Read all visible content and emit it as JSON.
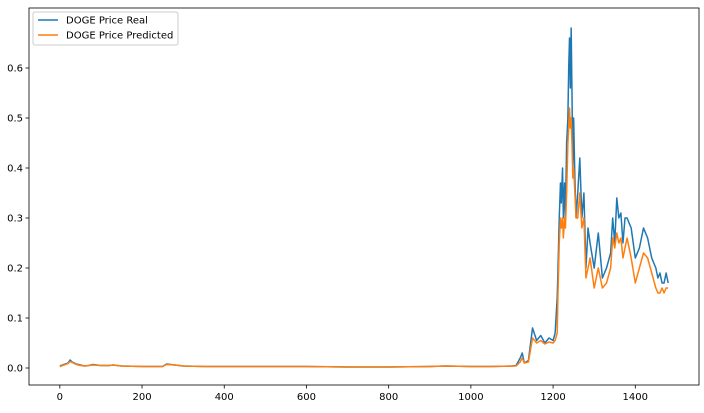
{
  "chart_data": {
    "type": "line",
    "title": "",
    "xlabel": "",
    "ylabel": "",
    "xlim": [
      -75,
      1555
    ],
    "ylim": [
      -0.034,
      0.72
    ],
    "xticks": [
      0,
      200,
      400,
      600,
      800,
      1000,
      1200,
      1400
    ],
    "xtick_labels": [
      "0",
      "200",
      "400",
      "600",
      "800",
      "1000",
      "1200",
      "1400"
    ],
    "yticks": [
      0.0,
      0.1,
      0.2,
      0.3,
      0.4,
      0.5,
      0.6
    ],
    "ytick_labels": [
      "0.0",
      "0.1",
      "0.2",
      "0.3",
      "0.4",
      "0.5",
      "0.6"
    ],
    "grid": false,
    "legend_position": "upper-left",
    "series": [
      {
        "name": "DOGE Price Real",
        "color": "#1f77b4",
        "x": [
          0,
          10,
          20,
          25,
          30,
          40,
          50,
          60,
          70,
          80,
          100,
          120,
          130,
          150,
          200,
          250,
          260,
          280,
          300,
          350,
          400,
          500,
          600,
          700,
          800,
          900,
          940,
          1000,
          1050,
          1100,
          1110,
          1120,
          1125,
          1130,
          1140,
          1150,
          1160,
          1170,
          1180,
          1190,
          1200,
          1205,
          1210,
          1212,
          1215,
          1218,
          1220,
          1223,
          1225,
          1228,
          1230,
          1233,
          1236,
          1238,
          1240,
          1242,
          1244,
          1246,
          1248,
          1250,
          1253,
          1256,
          1260,
          1265,
          1270,
          1275,
          1280,
          1285,
          1290,
          1300,
          1310,
          1320,
          1330,
          1340,
          1345,
          1350,
          1355,
          1360,
          1365,
          1370,
          1375,
          1380,
          1390,
          1400,
          1410,
          1420,
          1430,
          1440,
          1450,
          1455,
          1460,
          1465,
          1470,
          1475,
          1480
        ],
        "y": [
          0.004,
          0.007,
          0.01,
          0.016,
          0.012,
          0.008,
          0.006,
          0.004,
          0.005,
          0.007,
          0.005,
          0.005,
          0.006,
          0.004,
          0.003,
          0.003,
          0.008,
          0.006,
          0.004,
          0.003,
          0.003,
          0.003,
          0.003,
          0.002,
          0.002,
          0.003,
          0.004,
          0.003,
          0.003,
          0.004,
          0.005,
          0.02,
          0.03,
          0.01,
          0.015,
          0.08,
          0.055,
          0.065,
          0.05,
          0.06,
          0.055,
          0.07,
          0.14,
          0.2,
          0.3,
          0.37,
          0.33,
          0.4,
          0.3,
          0.37,
          0.3,
          0.45,
          0.5,
          0.6,
          0.66,
          0.56,
          0.68,
          0.55,
          0.4,
          0.5,
          0.38,
          0.3,
          0.35,
          0.42,
          0.3,
          0.35,
          0.2,
          0.28,
          0.25,
          0.2,
          0.27,
          0.18,
          0.2,
          0.23,
          0.3,
          0.25,
          0.34,
          0.3,
          0.31,
          0.25,
          0.3,
          0.3,
          0.28,
          0.22,
          0.24,
          0.28,
          0.26,
          0.22,
          0.2,
          0.18,
          0.19,
          0.17,
          0.17,
          0.19,
          0.17
        ]
      },
      {
        "name": "DOGE Price Predicted",
        "color": "#ff7f0e",
        "x": [
          0,
          10,
          20,
          25,
          30,
          40,
          50,
          60,
          70,
          80,
          100,
          120,
          130,
          150,
          200,
          250,
          260,
          280,
          300,
          350,
          400,
          500,
          600,
          700,
          800,
          900,
          940,
          1000,
          1050,
          1100,
          1110,
          1120,
          1125,
          1130,
          1140,
          1150,
          1160,
          1170,
          1180,
          1190,
          1200,
          1205,
          1210,
          1212,
          1215,
          1218,
          1220,
          1223,
          1225,
          1228,
          1230,
          1233,
          1236,
          1238,
          1240,
          1242,
          1244,
          1246,
          1248,
          1250,
          1253,
          1256,
          1260,
          1265,
          1270,
          1275,
          1280,
          1285,
          1290,
          1300,
          1310,
          1320,
          1330,
          1340,
          1345,
          1350,
          1355,
          1360,
          1365,
          1370,
          1375,
          1380,
          1390,
          1400,
          1410,
          1420,
          1430,
          1440,
          1450,
          1455,
          1460,
          1465,
          1470,
          1475,
          1480
        ],
        "y": [
          0.003,
          0.006,
          0.009,
          0.013,
          0.011,
          0.007,
          0.005,
          0.004,
          0.005,
          0.006,
          0.005,
          0.005,
          0.006,
          0.004,
          0.003,
          0.003,
          0.007,
          0.006,
          0.004,
          0.003,
          0.003,
          0.003,
          0.003,
          0.002,
          0.002,
          0.003,
          0.004,
          0.003,
          0.003,
          0.004,
          0.004,
          0.012,
          0.02,
          0.01,
          0.012,
          0.06,
          0.05,
          0.055,
          0.048,
          0.052,
          0.05,
          0.055,
          0.07,
          0.15,
          0.25,
          0.3,
          0.28,
          0.3,
          0.26,
          0.3,
          0.28,
          0.35,
          0.45,
          0.48,
          0.52,
          0.48,
          0.5,
          0.45,
          0.38,
          0.4,
          0.35,
          0.3,
          0.3,
          0.35,
          0.28,
          0.3,
          0.18,
          0.2,
          0.22,
          0.16,
          0.2,
          0.16,
          0.17,
          0.2,
          0.26,
          0.24,
          0.27,
          0.25,
          0.26,
          0.22,
          0.24,
          0.26,
          0.22,
          0.17,
          0.2,
          0.23,
          0.22,
          0.19,
          0.16,
          0.15,
          0.15,
          0.16,
          0.15,
          0.16,
          0.16
        ]
      }
    ]
  }
}
